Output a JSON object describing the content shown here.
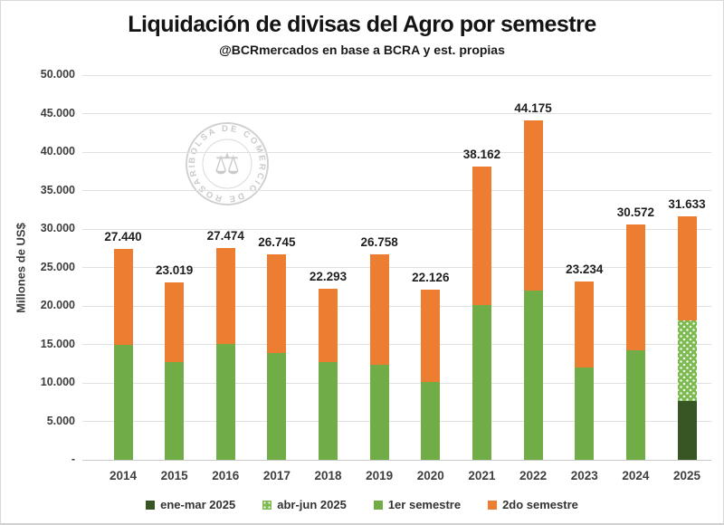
{
  "title": "Liquidación de divisas del Agro por semestre",
  "subtitle": "@BCRmercados en base a BCRA y est. propias",
  "watermark": {
    "ring_text": "BOLSA DE COMERCIO DE ROSARIO",
    "icon": "scales-icon",
    "color": "#a9a9a9"
  },
  "y_axis": {
    "title": "Millones de US$",
    "tick_labels": [
      "50.000",
      "45.000",
      "40.000",
      "35.000",
      "30.000",
      "25.000",
      "20.000",
      "15.000",
      "10.000",
      "5.000",
      "-"
    ],
    "tick_values": [
      50000,
      45000,
      40000,
      35000,
      30000,
      25000,
      20000,
      15000,
      10000,
      5000,
      0
    ]
  },
  "legend": [
    {
      "label": "ene-mar 2025",
      "color": "#375623",
      "pattern": "solid"
    },
    {
      "label": "abr-jun 2025",
      "color": "#7dbb52",
      "pattern": "dots"
    },
    {
      "label": "1er semestre",
      "color": "#70ad47",
      "pattern": "solid"
    },
    {
      "label": "2do semestre",
      "color": "#ed7d31",
      "pattern": "solid"
    }
  ],
  "chart_data": {
    "type": "bar",
    "stacked": true,
    "title": "Liquidación de divisas del Agro por semestre",
    "subtitle": "@BCRmercados en base a BCRA y est. propias",
    "xlabel": "",
    "ylabel": "Millones de US$",
    "ylim": [
      0,
      50000
    ],
    "grid": true,
    "legend_position": "bottom",
    "categories": [
      "2014",
      "2015",
      "2016",
      "2017",
      "2018",
      "2019",
      "2020",
      "2021",
      "2022",
      "2023",
      "2024",
      "2025"
    ],
    "series": [
      {
        "name": "ene-mar 2025",
        "color": "#375623",
        "pattern": "solid",
        "values": [
          0,
          0,
          0,
          0,
          0,
          0,
          0,
          0,
          0,
          0,
          0,
          7600
        ]
      },
      {
        "name": "abr-jun 2025",
        "color": "#7dbb52",
        "pattern": "dots",
        "values": [
          0,
          0,
          0,
          0,
          0,
          0,
          0,
          0,
          0,
          0,
          0,
          10500
        ]
      },
      {
        "name": "1er semestre",
        "color": "#70ad47",
        "pattern": "solid",
        "values": [
          14900,
          12650,
          15100,
          13850,
          12750,
          12350,
          10100,
          20100,
          22050,
          12000,
          14200,
          0
        ]
      },
      {
        "name": "2do semestre",
        "color": "#ed7d31",
        "pattern": "solid",
        "values": [
          12540,
          10369,
          12374,
          12895,
          9543,
          14408,
          12026,
          18062,
          22125,
          11234,
          16372,
          13533
        ]
      }
    ],
    "totals": [
      27440,
      23019,
      27474,
      26745,
      22293,
      26758,
      22126,
      38162,
      44175,
      23234,
      30572,
      31633
    ],
    "totals_labels": [
      "27.440",
      "23.019",
      "27.474",
      "26.745",
      "22.293",
      "26.758",
      "22.126",
      "38.162",
      "44.175",
      "23.234",
      "30.572",
      "31.633"
    ]
  }
}
